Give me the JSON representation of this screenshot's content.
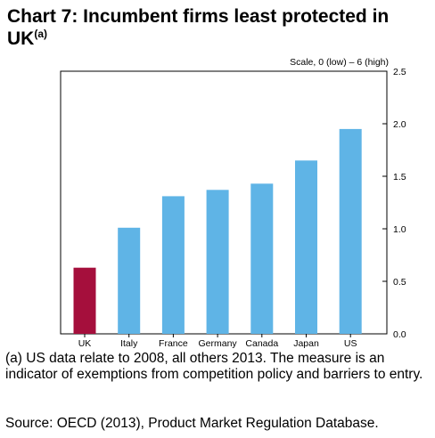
{
  "title": {
    "main": "Chart 7: Incumbent firms least protected in UK",
    "note_marker": "(a)"
  },
  "chart_data": {
    "type": "bar",
    "categories": [
      "UK",
      "Italy",
      "France",
      "Germany",
      "Canada",
      "Japan",
      "US"
    ],
    "values": [
      0.63,
      1.01,
      1.31,
      1.37,
      1.43,
      1.65,
      1.95
    ],
    "ylabel": "Scale, 0 (low) – 6 (high)",
    "ylim": [
      0,
      2.5
    ],
    "yticks": [
      0.0,
      0.5,
      1.0,
      1.5,
      2.0,
      2.5
    ],
    "ytick_labels": [
      "0.0",
      "0.5",
      "1.0",
      "1.5",
      "2.0",
      "2.5"
    ],
    "y_axis_side": "right",
    "grid": false,
    "colors": {
      "highlight": "#a50f3c",
      "bar": "#5fb4e6",
      "axis": "#000000"
    },
    "highlight_category": "UK"
  },
  "footnote": "(a) US data relate to 2008, all others 2013.  The measure is an indicator of exemptions from competition policy and barriers to entry.",
  "source": "Source: OECD (2013), Product Market Regulation Database."
}
